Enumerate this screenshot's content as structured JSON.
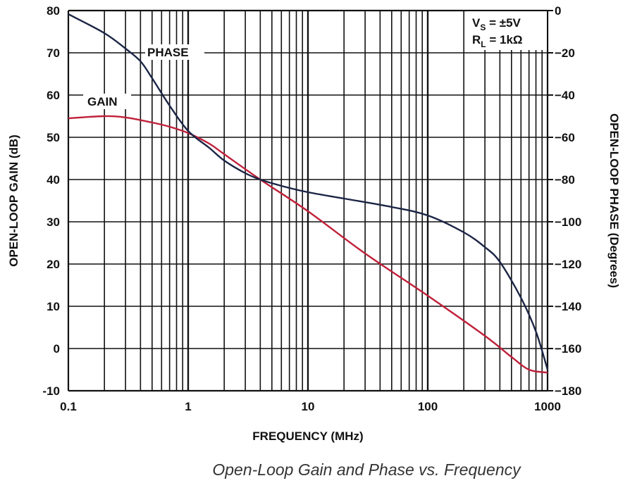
{
  "chart_data": {
    "type": "line",
    "title": "",
    "caption": "Open-Loop Gain and Phase vs. Frequency",
    "xlabel": "FREQUENCY (MHz)",
    "ylabel": "OPEN-LOOP GAIN (dB)",
    "y2label": "OPEN-LOOP PHASE (Degrees)",
    "xscale": "log",
    "xlim": [
      0.1,
      1000
    ],
    "ylim": [
      -10,
      80
    ],
    "y2lim": [
      -180,
      0
    ],
    "xticks": [
      "0.1",
      "1",
      "10",
      "100",
      "1000"
    ],
    "yticks": [
      "80",
      "70",
      "60",
      "50",
      "40",
      "30",
      "20",
      "10",
      "0",
      "-10"
    ],
    "y2ticks": [
      "0",
      "−20",
      "−40",
      "−60",
      "−80",
      "−100",
      "−120",
      "−140",
      "−160",
      "−180"
    ],
    "grid": true,
    "annotation": {
      "line1_main": "V",
      "line1_sub": "S",
      "line1_rest": " = ±5V",
      "line2_main": "R",
      "line2_sub": "L",
      "line2_rest": " = 1kΩ"
    },
    "series": [
      {
        "name": "GAIN",
        "axis": "left",
        "color": "#c0203a",
        "x": [
          0.1,
          0.2,
          0.3,
          0.5,
          0.7,
          1,
          1.5,
          2,
          4,
          10,
          30,
          100,
          300,
          500,
          700,
          1000
        ],
        "y": [
          54.5,
          55,
          54.7,
          53.5,
          52.5,
          51,
          48.5,
          46,
          40,
          32.5,
          22.5,
          12.5,
          3,
          -2,
          -5,
          -5.7
        ]
      },
      {
        "name": "PHASE",
        "axis": "right",
        "color": "#1b2545",
        "x": [
          0.1,
          0.2,
          0.3,
          0.4,
          0.5,
          0.7,
          1,
          1.5,
          2,
          3,
          4,
          6,
          10,
          20,
          50,
          100,
          200,
          300,
          400,
          600,
          800,
          1000
        ],
        "y": [
          -1.7,
          -10.7,
          -18,
          -24,
          -32,
          -45,
          -57,
          -65,
          -71,
          -77,
          -80,
          -83,
          -86,
          -89,
          -93,
          -97,
          -105,
          -112,
          -119,
          -136,
          -152,
          -170
        ]
      }
    ]
  }
}
